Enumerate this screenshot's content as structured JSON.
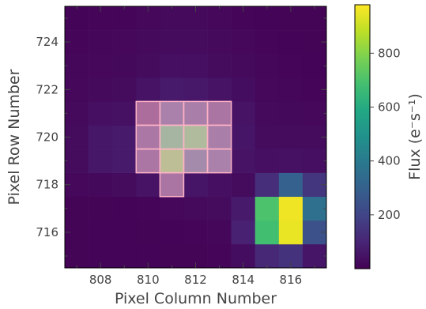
{
  "chart_data": {
    "type": "heatmap",
    "xlabel": "Pixel Column Number",
    "ylabel": "Pixel Row Number",
    "x_ticks": [
      808,
      810,
      812,
      814,
      816
    ],
    "y_ticks": [
      716,
      718,
      720,
      722,
      724
    ],
    "xlim": [
      806.5,
      817.5
    ],
    "ylim": [
      714.5,
      725.5
    ],
    "colorbar": {
      "label": "Flux (e⁻s⁻¹)",
      "ticks": [
        200,
        400,
        600,
        800
      ],
      "range": [
        0,
        980
      ],
      "colormap": "viridis"
    },
    "columns": [
      807,
      808,
      809,
      810,
      811,
      812,
      813,
      814,
      815,
      816,
      817
    ],
    "rows": [
      715,
      716,
      717,
      718,
      719,
      720,
      721,
      722,
      723,
      724,
      725
    ],
    "values": [
      [
        10,
        8,
        8,
        8,
        10,
        10,
        15,
        35,
        110,
        140,
        55
      ],
      [
        10,
        8,
        8,
        10,
        12,
        15,
        18,
        90,
        680,
        950,
        240
      ],
      [
        10,
        10,
        12,
        15,
        20,
        25,
        30,
        70,
        700,
        960,
        360
      ],
      [
        20,
        22,
        30,
        50,
        120,
        55,
        40,
        30,
        130,
        300,
        150
      ],
      [
        30,
        60,
        70,
        130,
        760,
        280,
        200,
        50,
        40,
        45,
        40
      ],
      [
        30,
        60,
        70,
        140,
        660,
        710,
        190,
        55,
        30,
        30,
        30
      ],
      [
        25,
        40,
        45,
        70,
        200,
        190,
        120,
        50,
        25,
        22,
        20
      ],
      [
        20,
        25,
        30,
        50,
        70,
        65,
        50,
        35,
        20,
        18,
        15
      ],
      [
        18,
        20,
        22,
        30,
        40,
        40,
        30,
        25,
        18,
        15,
        12
      ],
      [
        15,
        18,
        20,
        25,
        30,
        30,
        25,
        20,
        15,
        12,
        10
      ],
      [
        12,
        15,
        15,
        20,
        25,
        25,
        20,
        15,
        12,
        10,
        10
      ]
    ],
    "aperture_mask": [
      [
        810,
        720
      ],
      [
        811,
        720
      ],
      [
        812,
        720
      ],
      [
        813,
        720
      ],
      [
        810,
        719
      ],
      [
        811,
        719
      ],
      [
        812,
        719
      ],
      [
        813,
        719
      ],
      [
        810,
        721
      ],
      [
        811,
        721
      ],
      [
        812,
        721
      ],
      [
        813,
        721
      ],
      [
        811,
        718
      ]
    ],
    "aperture_color": "#ffb3c6",
    "axes_frame_color": "#000000",
    "text_color": "#444444",
    "grid": false
  }
}
